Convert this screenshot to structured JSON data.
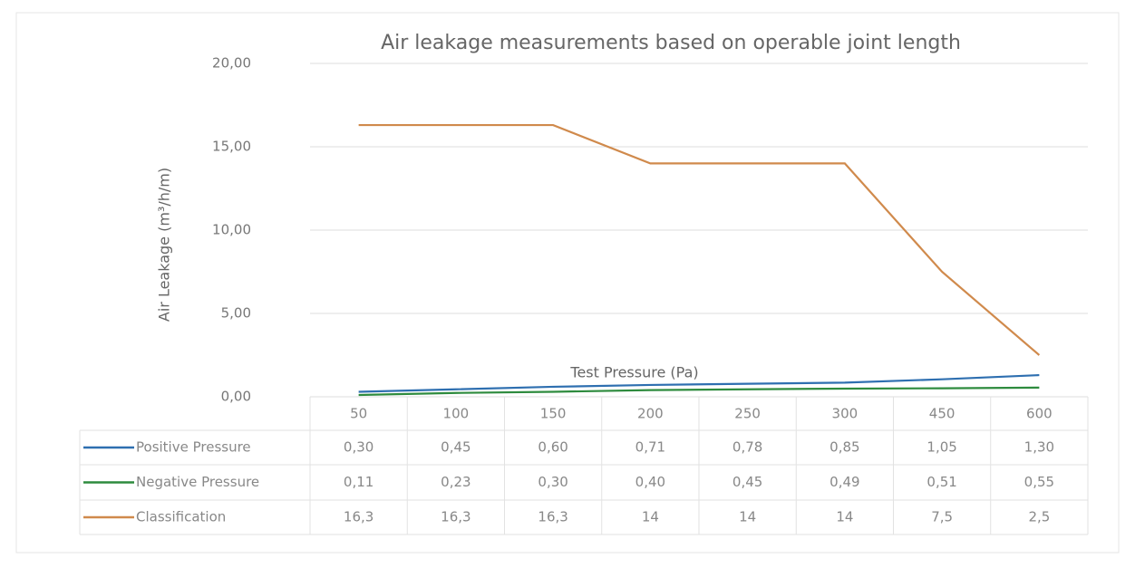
{
  "chart_data": {
    "type": "line",
    "title": "Air leakage measurements based on operable joint length",
    "x_label": "Test Pressure (Pa)",
    "y_label": "Air Leakage (m³/h/m)",
    "categories": [
      "50",
      "100",
      "150",
      "200",
      "250",
      "300",
      "450",
      "600"
    ],
    "series": [
      {
        "name": "Positive Pressure",
        "color": "#2e6fb0",
        "values": [
          0.3,
          0.45,
          0.6,
          0.71,
          0.78,
          0.85,
          1.05,
          1.3
        ],
        "value_labels": [
          "0,30",
          "0,45",
          "0,60",
          "0,71",
          "0,78",
          "0,85",
          "1,05",
          "1,30"
        ]
      },
      {
        "name": "Negative Pressure",
        "color": "#2e8b3e",
        "values": [
          0.11,
          0.23,
          0.3,
          0.4,
          0.45,
          0.49,
          0.51,
          0.55
        ],
        "value_labels": [
          "0,11",
          "0,23",
          "0,30",
          "0,40",
          "0,45",
          "0,49",
          "0,51",
          "0,55"
        ]
      },
      {
        "name": "Classification",
        "color": "#d08a4c",
        "values": [
          16.3,
          16.3,
          16.3,
          14,
          14,
          14,
          7.5,
          2.5
        ],
        "value_labels": [
          "16,3",
          "16,3",
          "16,3",
          "14",
          "14",
          "14",
          "7,5",
          "2,5"
        ]
      }
    ],
    "ylim": [
      0,
      20
    ],
    "yticks": [
      {
        "value": 0,
        "label": "0,00"
      },
      {
        "value": 5,
        "label": "5,00"
      },
      {
        "value": 10,
        "label": "10,00"
      },
      {
        "value": 15,
        "label": "15,00"
      },
      {
        "value": 20,
        "label": "20,00"
      }
    ],
    "grid": true
  }
}
